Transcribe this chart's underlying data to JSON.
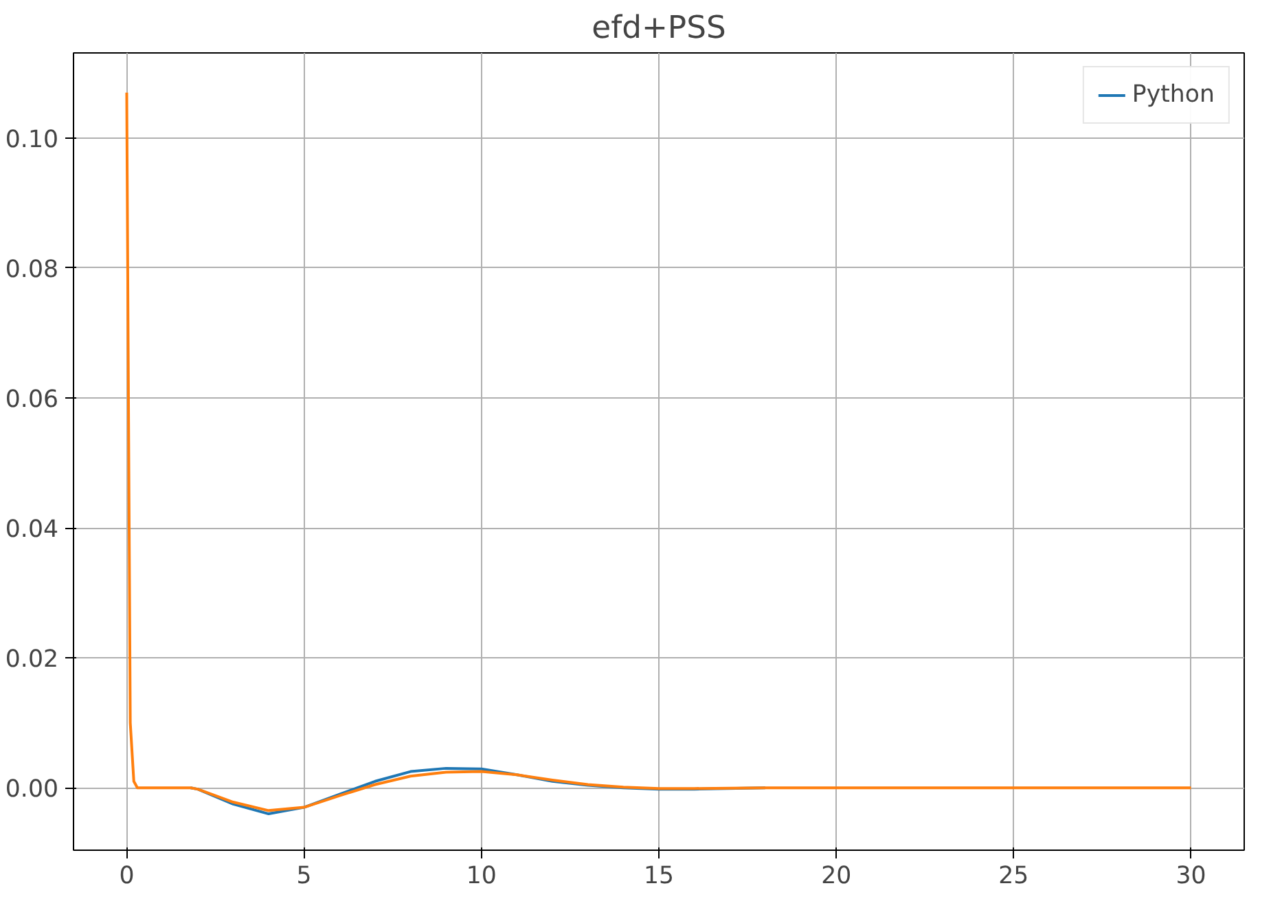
{
  "chart_data": {
    "type": "line",
    "title": "efd+PSS",
    "xlim": [
      -1.5,
      31.5
    ],
    "ylim": [
      -0.0096,
      0.1131
    ],
    "xticks": [
      0,
      5,
      10,
      15,
      20,
      25,
      30
    ],
    "yticks": [
      {
        "value": 0,
        "label": "0.00"
      },
      {
        "value": 0.02,
        "label": "0.02"
      },
      {
        "value": 0.04,
        "label": "0.04"
      },
      {
        "value": 0.06,
        "label": "0.06"
      },
      {
        "value": 0.08,
        "label": "0.08"
      },
      {
        "value": 0.1,
        "label": "0.10"
      }
    ],
    "grid": true,
    "legend": "top right",
    "series": [
      {
        "name": "Python",
        "color": "#1f77b4",
        "x": [
          1.8,
          2,
          3,
          4,
          5,
          6,
          7,
          8,
          9,
          10,
          11,
          12,
          13,
          14,
          15,
          16,
          18
        ],
        "values": [
          0,
          -0.0002,
          -0.0025,
          -0.004,
          -0.003,
          -0.001,
          0.001,
          0.0025,
          0.003,
          0.0029,
          0.002,
          0.001,
          0.0004,
          0,
          -0.0002,
          -0.0002,
          0
        ]
      },
      {
        "color": "#ff7f0e",
        "x": [
          0,
          0.1,
          0.2,
          0.3,
          1.8,
          2,
          3,
          4,
          5,
          6,
          7,
          8,
          9,
          10,
          11,
          12,
          13,
          14,
          15,
          16,
          18,
          20,
          30
        ],
        "values": [
          0.107,
          0.01,
          0.001,
          0,
          0,
          -0.0002,
          -0.0022,
          -0.0035,
          -0.003,
          -0.0012,
          0.0005,
          0.0018,
          0.0024,
          0.0025,
          0.002,
          0.0012,
          0.0005,
          0.0001,
          -0.0001,
          -0.0001,
          0,
          0,
          0
        ]
      }
    ]
  }
}
